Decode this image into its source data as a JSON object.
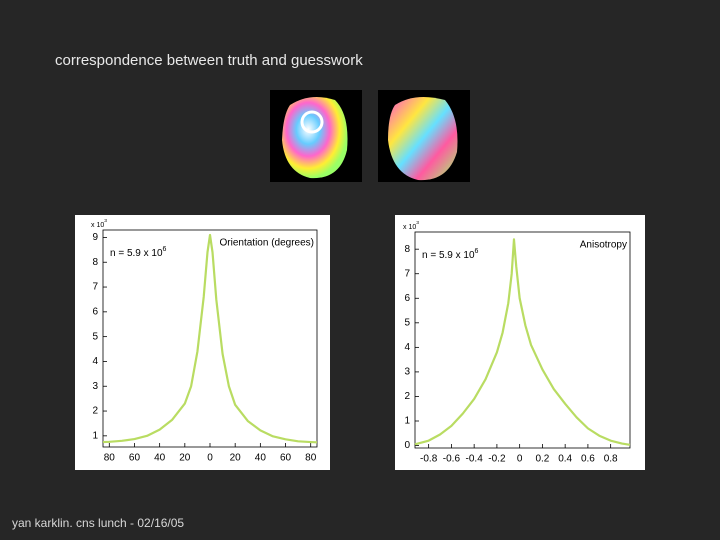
{
  "slide": {
    "title": "correspondence between truth and guesswork",
    "footer": "yan karklin.  cns lunch - 02/16/05"
  },
  "chart_data": [
    {
      "type": "line",
      "annotation": {
        "text": "n = 5.9 x 10",
        "sup": "6"
      },
      "y_multiplier": {
        "text": "x 10",
        "sup": "3"
      },
      "label": "Orientation (degrees)",
      "x": [
        -85,
        -80,
        -70,
        -60,
        -50,
        -40,
        -30,
        -20,
        -15,
        -10,
        -5,
        -2,
        0,
        2,
        5,
        10,
        15,
        20,
        30,
        40,
        50,
        60,
        70,
        80,
        85
      ],
      "series": [
        {
          "color": "#b9dc62",
          "values": [
            0.75,
            0.76,
            0.8,
            0.87,
            1.0,
            1.25,
            1.65,
            2.3,
            3.0,
            4.4,
            6.6,
            8.4,
            9.1,
            8.4,
            6.5,
            4.3,
            3.0,
            2.25,
            1.6,
            1.22,
            0.98,
            0.86,
            0.78,
            0.75,
            0.74
          ]
        }
      ],
      "xlim": [
        -85,
        85
      ],
      "ylim": [
        0.55,
        9.3
      ],
      "xticks": [
        {
          "value": -80,
          "label": "80"
        },
        {
          "value": -60,
          "label": "60"
        },
        {
          "value": -40,
          "label": "40"
        },
        {
          "value": -20,
          "label": "20"
        },
        0,
        20,
        40,
        60,
        80
      ],
      "yticks": [
        1,
        2,
        3,
        4,
        5,
        6,
        7,
        8,
        9
      ]
    },
    {
      "type": "line",
      "annotation": {
        "text": "n = 5.9 x 10",
        "sup": "6"
      },
      "y_multiplier": {
        "text": "x 10",
        "sup": "3"
      },
      "label": "Anisotropy",
      "x": [
        -0.92,
        -0.8,
        -0.7,
        -0.6,
        -0.5,
        -0.4,
        -0.3,
        -0.2,
        -0.15,
        -0.1,
        -0.07,
        -0.05,
        -0.03,
        0,
        0.05,
        0.1,
        0.2,
        0.3,
        0.4,
        0.5,
        0.6,
        0.7,
        0.8,
        0.9,
        0.97
      ],
      "series": [
        {
          "color": "#b9dc62",
          "values": [
            0.05,
            0.2,
            0.45,
            0.8,
            1.3,
            1.9,
            2.7,
            3.8,
            4.6,
            5.8,
            7.0,
            8.4,
            7.3,
            6.0,
            4.9,
            4.1,
            3.1,
            2.3,
            1.7,
            1.15,
            0.7,
            0.4,
            0.2,
            0.08,
            0.03
          ]
        }
      ],
      "xlim": [
        -0.92,
        0.97
      ],
      "ylim": [
        -0.1,
        8.7
      ],
      "xticks": [
        -0.8,
        -0.6,
        -0.4,
        -0.2,
        0,
        0.2,
        0.4,
        0.6,
        0.8
      ],
      "yticks": [
        0,
        1,
        2,
        3,
        4,
        5,
        6,
        7,
        8
      ]
    }
  ]
}
